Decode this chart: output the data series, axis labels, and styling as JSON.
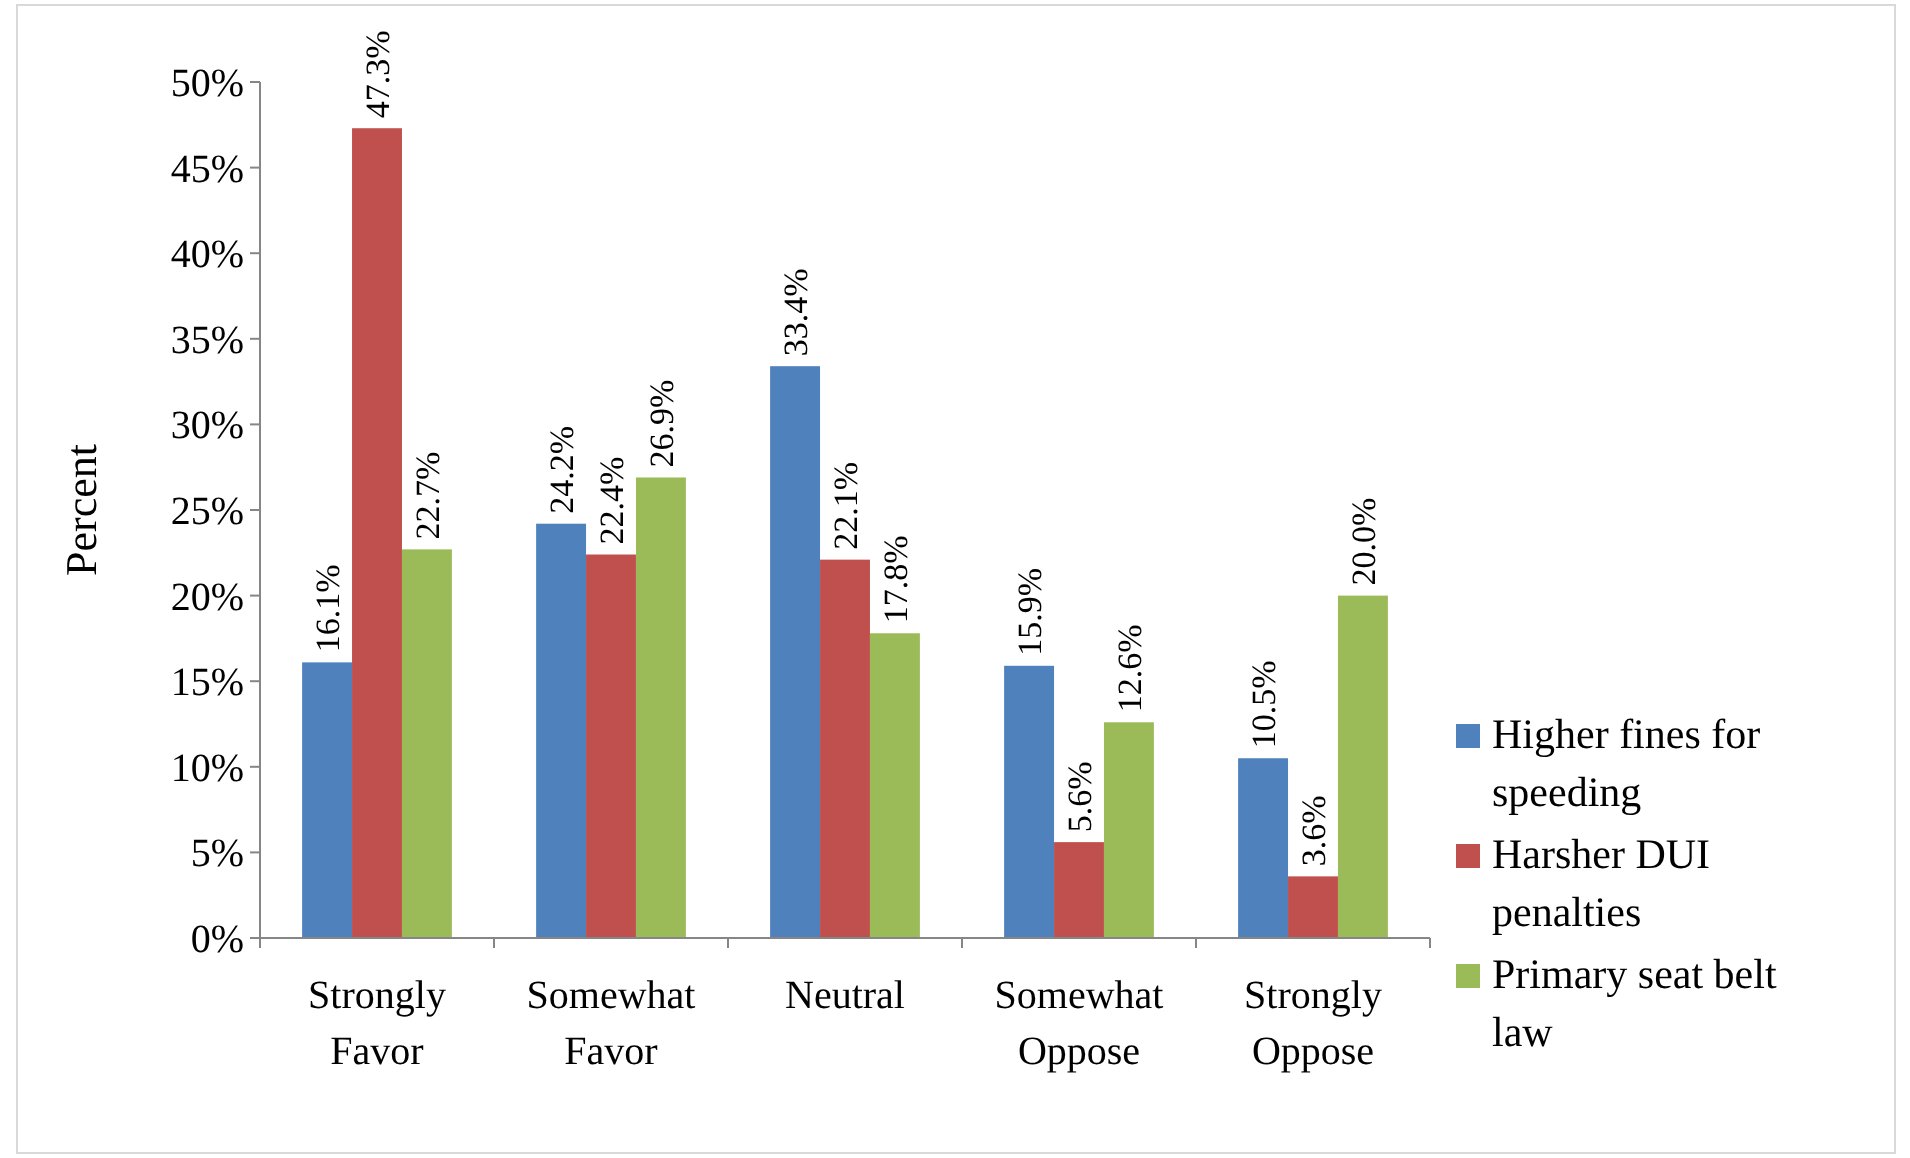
{
  "chart_data": {
    "type": "bar",
    "ylabel": "Percent",
    "categories": [
      "Strongly Favor",
      "Somewhat Favor",
      "Neutral",
      "Somewhat Oppose",
      "Strongly Oppose"
    ],
    "series": [
      {
        "name": "Higher fines for speeding",
        "color": "#4f81bd",
        "values": [
          16.1,
          24.2,
          33.4,
          15.9,
          10.5
        ],
        "value_labels": [
          "16.1%",
          "24.2%",
          "33.4%",
          "15.9%",
          "10.5%"
        ]
      },
      {
        "name": "Harsher DUI penalties",
        "color": "#c0504d",
        "values": [
          47.3,
          22.4,
          22.1,
          5.6,
          3.6
        ],
        "value_labels": [
          "47.3%",
          "22.4%",
          "22.1%",
          "5.6%",
          "3.6%"
        ]
      },
      {
        "name": "Primary seat belt law",
        "color": "#9bbb59",
        "values": [
          22.7,
          26.9,
          17.8,
          12.6,
          20.0
        ],
        "value_labels": [
          "22.7%",
          "26.9%",
          "17.8%",
          "12.6%",
          "20.0%"
        ]
      }
    ],
    "ylim": [
      0,
      50
    ],
    "yticks": [
      {
        "value": 0,
        "label": "0%"
      },
      {
        "value": 5,
        "label": "5%"
      },
      {
        "value": 10,
        "label": "10%"
      },
      {
        "value": 15,
        "label": "15%"
      },
      {
        "value": 20,
        "label": "20%"
      },
      {
        "value": 25,
        "label": "25%"
      },
      {
        "value": 30,
        "label": "30%"
      },
      {
        "value": 35,
        "label": "35%"
      },
      {
        "value": 40,
        "label": "40%"
      },
      {
        "value": 45,
        "label": "45%"
      },
      {
        "value": 50,
        "label": "50%"
      }
    ],
    "legend": "right",
    "grid": false
  }
}
